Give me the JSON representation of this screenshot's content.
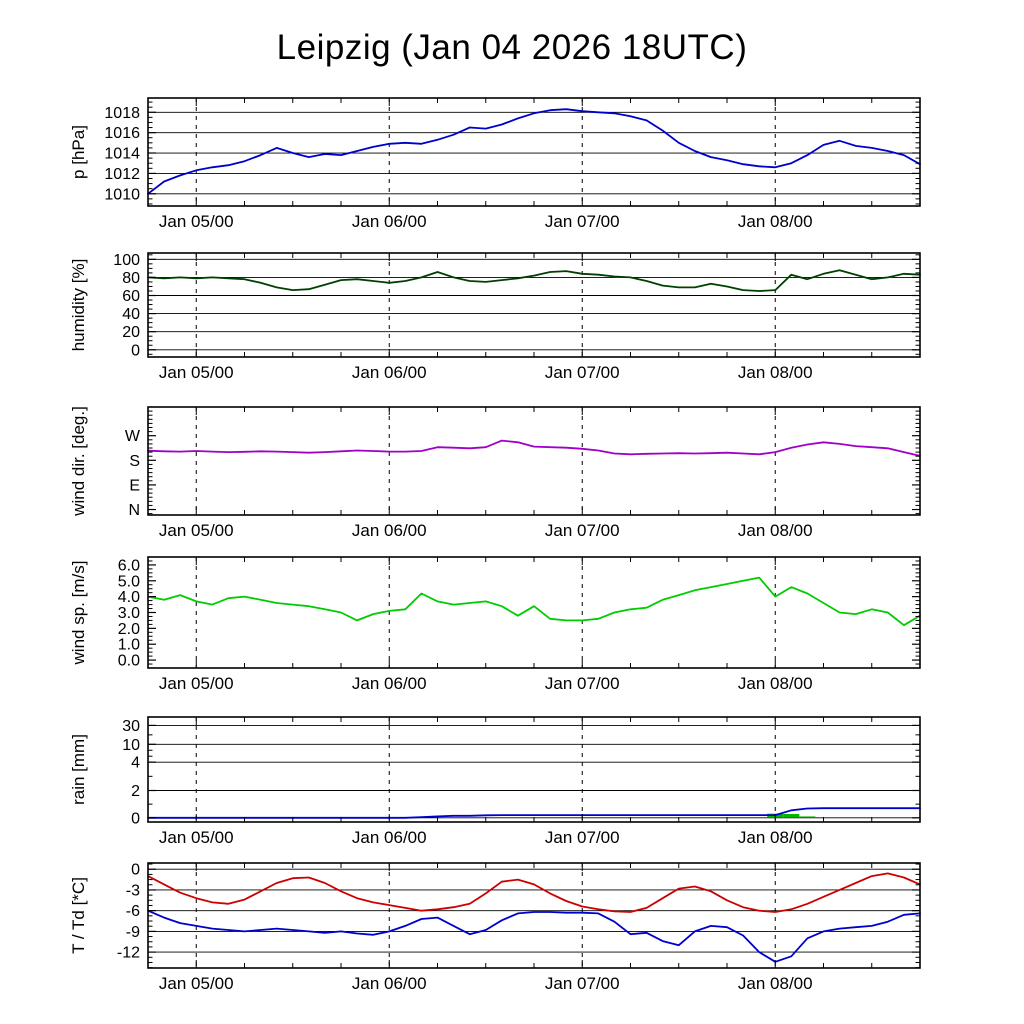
{
  "title": "Leipzig (Jan 04 2026 18UTC)",
  "x_axis": {
    "tick_labels": [
      "Jan 05/00",
      "Jan 06/00",
      "Jan 07/00",
      "Jan 08/00"
    ],
    "tick_hours": [
      6,
      30,
      54,
      78
    ],
    "minor_step_hours": 6,
    "range_hours": [
      0,
      96
    ]
  },
  "x_hours": [
    0,
    2,
    4,
    6,
    8,
    10,
    12,
    14,
    16,
    18,
    20,
    22,
    24,
    26,
    28,
    30,
    32,
    34,
    36,
    38,
    40,
    42,
    44,
    46,
    48,
    50,
    52,
    54,
    56,
    58,
    60,
    62,
    64,
    66,
    68,
    70,
    72,
    74,
    76,
    78,
    80,
    82,
    84,
    86,
    88,
    90,
    92,
    94,
    96
  ],
  "chart_data": [
    {
      "id": "pressure",
      "type": "line",
      "ylabel": "p [hPa]",
      "ylim": [
        1008.8,
        1019.4
      ],
      "grid": true,
      "yticks": [
        {
          "v": 1010,
          "label": "1010"
        },
        {
          "v": 1012,
          "label": "1012"
        },
        {
          "v": 1014,
          "label": "1014"
        },
        {
          "v": 1016,
          "label": "1016"
        },
        {
          "v": 1018,
          "label": "1018"
        }
      ],
      "yminor_step": 0.5,
      "series": [
        {
          "name": "pressure",
          "color": "#0000cd",
          "values": [
            1010.0,
            1011.2,
            1011.8,
            1012.3,
            1012.6,
            1012.8,
            1013.2,
            1013.8,
            1014.5,
            1014.0,
            1013.6,
            1013.9,
            1013.8,
            1014.2,
            1014.6,
            1014.9,
            1015.0,
            1014.9,
            1015.3,
            1015.8,
            1016.5,
            1016.4,
            1016.8,
            1017.4,
            1017.9,
            1018.2,
            1018.3,
            1018.1,
            1018.0,
            1017.9,
            1017.6,
            1017.2,
            1016.2,
            1015.0,
            1014.2,
            1013.6,
            1013.3,
            1012.9,
            1012.7,
            1012.6,
            1013.0,
            1013.8,
            1014.8,
            1015.2,
            1014.7,
            1014.5,
            1014.2,
            1013.8,
            1012.9
          ]
        }
      ]
    },
    {
      "id": "humidity",
      "type": "line",
      "ylabel": "humidity [%]",
      "ylim": [
        -8,
        107
      ],
      "grid": true,
      "yticks": [
        {
          "v": 0,
          "label": "0"
        },
        {
          "v": 20,
          "label": "20"
        },
        {
          "v": 40,
          "label": "40"
        },
        {
          "v": 60,
          "label": "60"
        },
        {
          "v": 80,
          "label": "80"
        },
        {
          "v": 100,
          "label": "100"
        }
      ],
      "yminor_step": 5,
      "series": [
        {
          "name": "humidity",
          "color": "#004000",
          "values": [
            80,
            79,
            80,
            79,
            80,
            79,
            78,
            74,
            69,
            66,
            67,
            72,
            77,
            78,
            76,
            74,
            76,
            80,
            86,
            80,
            76,
            75,
            77,
            79,
            82,
            86,
            87,
            84,
            83,
            81,
            80,
            76,
            71,
            69,
            69,
            73,
            70,
            66,
            65,
            66,
            83,
            78,
            84,
            88,
            83,
            78,
            80,
            84,
            83
          ]
        }
      ]
    },
    {
      "id": "wind-direction",
      "type": "line",
      "ylabel": "wind dir. [deg.]",
      "ylim": [
        -20,
        375
      ],
      "grid": false,
      "yticks": [
        {
          "v": 0,
          "label": "N"
        },
        {
          "v": 90,
          "label": "E"
        },
        {
          "v": 180,
          "label": "S"
        },
        {
          "v": 270,
          "label": "W"
        }
      ],
      "yminor_step": 15,
      "series": [
        {
          "name": "wind-direction",
          "color": "#a000c8",
          "values": [
            215,
            213,
            212,
            214,
            212,
            210,
            211,
            213,
            212,
            210,
            208,
            210,
            213,
            216,
            214,
            212,
            212,
            214,
            228,
            226,
            224,
            228,
            252,
            246,
            230,
            228,
            226,
            222,
            216,
            205,
            202,
            204,
            205,
            206,
            205,
            206,
            208,
            205,
            202,
            210,
            226,
            238,
            246,
            240,
            232,
            228,
            224,
            210,
            196
          ]
        }
      ]
    },
    {
      "id": "wind-speed",
      "type": "line",
      "ylabel": "wind sp. [m/s]",
      "ylim": [
        -0.5,
        6.5
      ],
      "grid": false,
      "yticks": [
        {
          "v": 0,
          "label": "0.0"
        },
        {
          "v": 1,
          "label": "1.0"
        },
        {
          "v": 2,
          "label": "2.0"
        },
        {
          "v": 3,
          "label": "3.0"
        },
        {
          "v": 4,
          "label": "4.0"
        },
        {
          "v": 5,
          "label": "5.0"
        },
        {
          "v": 6,
          "label": "6.0"
        }
      ],
      "yminor_step": 0.25,
      "series": [
        {
          "name": "wind-speed",
          "color": "#00cc00",
          "values": [
            4.0,
            3.8,
            4.1,
            3.7,
            3.5,
            3.9,
            4.0,
            3.8,
            3.6,
            3.5,
            3.4,
            3.2,
            3.0,
            2.5,
            2.9,
            3.1,
            3.2,
            4.2,
            3.7,
            3.5,
            3.6,
            3.7,
            3.4,
            2.8,
            3.4,
            2.6,
            2.5,
            2.5,
            2.6,
            3.0,
            3.2,
            3.3,
            3.8,
            4.1,
            4.4,
            4.6,
            4.8,
            5.0,
            5.2,
            4.0,
            4.6,
            4.2,
            3.6,
            3.0,
            2.9,
            3.2,
            3.0,
            2.2,
            2.8
          ]
        }
      ]
    },
    {
      "id": "rain",
      "type": "line",
      "ylabel": "rain [mm]",
      "scale_anchors": [
        [
          0,
          0.04
        ],
        [
          2,
          0.3
        ],
        [
          4,
          0.57
        ],
        [
          10,
          0.74
        ],
        [
          30,
          0.92
        ],
        [
          60,
          1.0
        ]
      ],
      "grid": true,
      "yticks": [
        {
          "v": 0,
          "label": "0"
        },
        {
          "v": 2,
          "label": "2"
        },
        {
          "v": 4,
          "label": "4"
        },
        {
          "v": 10,
          "label": "10"
        },
        {
          "v": 30,
          "label": "30"
        }
      ],
      "yminor_values": [
        1,
        3,
        6,
        8,
        20
      ],
      "series": [
        {
          "name": "rain-rate-bars",
          "color": "#00b400",
          "style": "bars",
          "values": [
            0,
            0,
            0,
            0,
            0,
            0,
            0,
            0,
            0,
            0,
            0,
            0,
            0,
            0,
            0,
            0,
            0,
            0,
            0,
            0,
            0,
            0,
            0,
            0,
            0,
            0,
            0,
            0,
            0,
            0,
            0,
            0,
            0,
            0,
            0,
            0,
            0,
            0,
            0,
            0.3,
            0.28,
            0.1,
            0,
            0,
            0,
            0,
            0,
            0,
            0
          ]
        },
        {
          "name": "rain-accumulated",
          "color": "#0000cd",
          "values": [
            0,
            0,
            0,
            0,
            0,
            0,
            0,
            0,
            0,
            0,
            0,
            0,
            0,
            0,
            0,
            0,
            0,
            0.05,
            0.1,
            0.15,
            0.15,
            0.18,
            0.2,
            0.2,
            0.2,
            0.2,
            0.2,
            0.2,
            0.2,
            0.2,
            0.2,
            0.2,
            0.2,
            0.2,
            0.2,
            0.2,
            0.2,
            0.2,
            0.2,
            0.2,
            0.55,
            0.68,
            0.7,
            0.7,
            0.7,
            0.7,
            0.7,
            0.7,
            0.7
          ]
        }
      ]
    },
    {
      "id": "temperature",
      "type": "line",
      "ylabel": "T / Td [*C]",
      "ylim": [
        -14.3,
        0.9
      ],
      "grid": true,
      "yticks": [
        {
          "v": 0,
          "label": "0"
        },
        {
          "v": -3,
          "label": "-3"
        },
        {
          "v": -6,
          "label": "-6"
        },
        {
          "v": -9,
          "label": "-9"
        },
        {
          "v": -12,
          "label": "-12"
        }
      ],
      "yminor_step": 0.75,
      "series": [
        {
          "name": "temperature",
          "color": "#cc0000",
          "values": [
            -1.0,
            -2.2,
            -3.4,
            -4.2,
            -4.8,
            -5.0,
            -4.4,
            -3.2,
            -2.0,
            -1.3,
            -1.2,
            -2.0,
            -3.2,
            -4.2,
            -4.8,
            -5.2,
            -5.6,
            -6.0,
            -5.8,
            -5.5,
            -5.0,
            -3.5,
            -1.8,
            -1.5,
            -2.2,
            -3.5,
            -4.6,
            -5.4,
            -5.8,
            -6.1,
            -6.2,
            -5.6,
            -4.2,
            -2.8,
            -2.5,
            -3.2,
            -4.5,
            -5.5,
            -6.0,
            -6.2,
            -5.8,
            -5.0,
            -4.0,
            -3.0,
            -2.0,
            -1.0,
            -0.6,
            -1.2,
            -2.2
          ]
        },
        {
          "name": "dewpoint",
          "color": "#0000cd",
          "values": [
            -6.0,
            -7.0,
            -7.8,
            -8.2,
            -8.6,
            -8.8,
            -9.0,
            -8.8,
            -8.6,
            -8.8,
            -9.0,
            -9.2,
            -9.0,
            -9.3,
            -9.5,
            -9.0,
            -8.2,
            -7.2,
            -7.0,
            -8.2,
            -9.4,
            -8.8,
            -7.4,
            -6.4,
            -6.2,
            -6.2,
            -6.3,
            -6.3,
            -6.4,
            -7.6,
            -9.4,
            -9.2,
            -10.4,
            -11.0,
            -9.0,
            -8.2,
            -8.4,
            -9.6,
            -12.0,
            -13.4,
            -12.6,
            -10.0,
            -9.0,
            -8.6,
            -8.4,
            -8.2,
            -7.6,
            -6.6,
            -6.4
          ]
        }
      ]
    }
  ]
}
